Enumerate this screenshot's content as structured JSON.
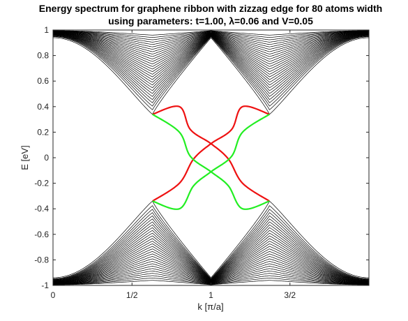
{
  "chart_data": {
    "type": "line",
    "title_line1": "Energy spectrum for graphene ribbon with zizzag edge for 80 atoms width",
    "title_line2": "using parameters: t=1.00,  λ=0.06 and V=0.05",
    "xlabel": "k [π/a]",
    "ylabel": "E [eV]",
    "xlim": [
      0,
      2
    ],
    "ylim": [
      -1,
      1
    ],
    "xticks": [
      {
        "value": 0,
        "label": "0"
      },
      {
        "value": 0.5,
        "label": "1/2"
      },
      {
        "value": 1,
        "label": "1"
      },
      {
        "value": 1.5,
        "label": "3/2"
      }
    ],
    "yticks": [
      {
        "value": 1,
        "label": "1"
      },
      {
        "value": 0.8,
        "label": "0.8"
      },
      {
        "value": 0.6,
        "label": "0.6"
      },
      {
        "value": 0.4,
        "label": "0.4"
      },
      {
        "value": 0.2,
        "label": "0.2"
      },
      {
        "value": 0,
        "label": "0"
      },
      {
        "value": -0.2,
        "label": "-0.2"
      },
      {
        "value": -0.4,
        "label": "-0.4"
      },
      {
        "value": -0.6,
        "label": "-0.6"
      },
      {
        "value": -0.8,
        "label": "-0.8"
      },
      {
        "value": -1,
        "label": "-1"
      }
    ],
    "bulk_bands": {
      "color": "#000000",
      "count_per_branch": 30
    },
    "edge_states": [
      {
        "color": "#ee1111",
        "points": [
          [
            0.63,
            0.34
          ],
          [
            0.8,
            0.4
          ],
          [
            0.87,
            0.22
          ],
          [
            1.0,
            0.11
          ],
          [
            1.11,
            -0.01
          ],
          [
            1.2,
            -0.2
          ],
          [
            1.37,
            -0.34
          ]
        ]
      },
      {
        "color": "#ee1111",
        "points": [
          [
            0.63,
            -0.34
          ],
          [
            0.8,
            -0.2
          ],
          [
            0.89,
            -0.01
          ],
          [
            1.0,
            0.11
          ],
          [
            1.13,
            0.22
          ],
          [
            1.2,
            0.4
          ],
          [
            1.37,
            0.34
          ]
        ]
      },
      {
        "color": "#22ee22",
        "points": [
          [
            0.63,
            0.34
          ],
          [
            0.8,
            0.2
          ],
          [
            0.87,
            0.01
          ],
          [
            1.0,
            -0.11
          ],
          [
            1.11,
            -0.22
          ],
          [
            1.2,
            -0.4
          ],
          [
            1.37,
            -0.34
          ]
        ]
      },
      {
        "color": "#22ee22",
        "points": [
          [
            0.63,
            -0.34
          ],
          [
            0.8,
            -0.4
          ],
          [
            0.89,
            -0.22
          ],
          [
            1.0,
            -0.11
          ],
          [
            1.13,
            0.01
          ],
          [
            1.2,
            0.2
          ],
          [
            1.37,
            0.34
          ]
        ]
      }
    ]
  }
}
